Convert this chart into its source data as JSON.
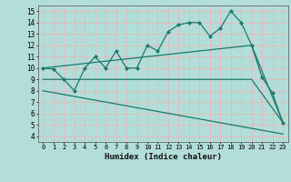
{
  "line1_x": [
    0,
    1,
    2,
    3,
    4,
    5,
    6,
    7,
    8,
    9,
    10,
    11,
    12,
    13,
    14,
    15,
    16,
    17,
    18,
    19,
    20,
    21,
    22,
    23
  ],
  "line1_y": [
    10,
    9.9,
    9.0,
    8.0,
    10.0,
    11.0,
    10.0,
    11.5,
    10.0,
    10.0,
    12.0,
    11.5,
    13.2,
    13.8,
    14.0,
    14.0,
    12.8,
    13.5,
    15.0,
    14.0,
    12.0,
    9.2,
    7.8,
    5.2
  ],
  "line2_x": [
    0,
    20,
    23
  ],
  "line2_y": [
    9.0,
    9.0,
    5.2
  ],
  "line3_x": [
    0,
    23
  ],
  "line3_y": [
    8.0,
    4.2
  ],
  "line4_x": [
    0,
    20,
    23
  ],
  "line4_y": [
    10.0,
    12.0,
    5.2
  ],
  "color": "#1a7a6e",
  "bg_color": "#b2ddd8",
  "grid_color": "#e8b8b8",
  "xlabel": "Humidex (Indice chaleur)",
  "xlim": [
    -0.5,
    23.5
  ],
  "ylim": [
    3.5,
    15.5
  ],
  "yticks": [
    4,
    5,
    6,
    7,
    8,
    9,
    10,
    11,
    12,
    13,
    14,
    15
  ],
  "xticks": [
    0,
    1,
    2,
    3,
    4,
    5,
    6,
    7,
    8,
    9,
    10,
    11,
    12,
    13,
    14,
    15,
    16,
    17,
    18,
    19,
    20,
    21,
    22,
    23
  ]
}
